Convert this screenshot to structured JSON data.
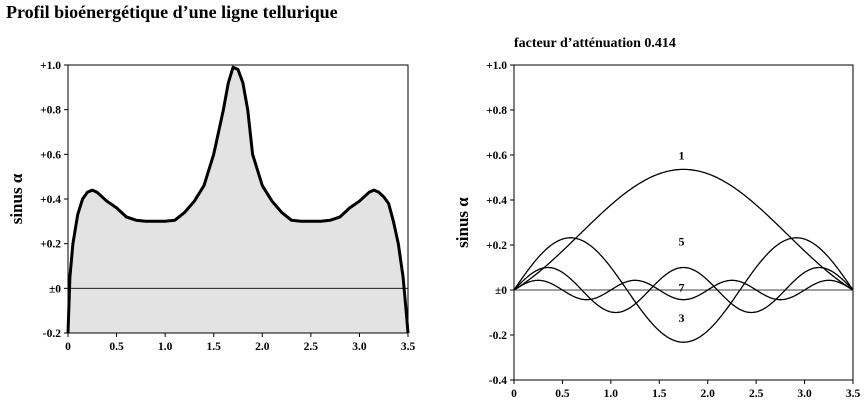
{
  "title": "Profil bioénergétique d’une ligne tellurique",
  "chart_data": [
    {
      "type": "area",
      "ylabel": "sinus α",
      "xlim": [
        0,
        3.5
      ],
      "ylim": [
        -0.2,
        1.0
      ],
      "x_ticks": [
        "0",
        "0.5",
        "1.0",
        "1.5",
        "2.0",
        "2.5",
        "3.0",
        "3.5"
      ],
      "y_ticks": [
        "-0.2",
        "±0",
        "+0.2",
        "+0.4",
        "+0.6",
        "+0.8",
        "+1.0"
      ],
      "series": [
        {
          "x": [
            0,
            0.02,
            0.05,
            0.1,
            0.15,
            0.2,
            0.25,
            0.3,
            0.4,
            0.5,
            0.6,
            0.7,
            0.8,
            0.9,
            1.0,
            1.1,
            1.2,
            1.3,
            1.4,
            1.5,
            1.6,
            1.65,
            1.7,
            1.75,
            1.8,
            1.85,
            1.9,
            2.0,
            2.1,
            2.2,
            2.3,
            2.4,
            2.5,
            2.6,
            2.7,
            2.8,
            2.9,
            3.0,
            3.1,
            3.15,
            3.2,
            3.25,
            3.3,
            3.35,
            3.4,
            3.45,
            3.48,
            3.5
          ],
          "y": [
            -0.2,
            0.05,
            0.2,
            0.33,
            0.4,
            0.43,
            0.44,
            0.43,
            0.39,
            0.36,
            0.32,
            0.305,
            0.3,
            0.3,
            0.3,
            0.305,
            0.34,
            0.39,
            0.46,
            0.6,
            0.8,
            0.92,
            0.99,
            0.98,
            0.92,
            0.8,
            0.6,
            0.46,
            0.39,
            0.34,
            0.305,
            0.3,
            0.3,
            0.3,
            0.305,
            0.32,
            0.36,
            0.39,
            0.43,
            0.44,
            0.43,
            0.41,
            0.38,
            0.3,
            0.2,
            0.05,
            -0.1,
            -0.2
          ]
        }
      ]
    },
    {
      "type": "line",
      "subtitle": "facteur d’atténuation 0.414",
      "ylabel": "sinus α",
      "xlim": [
        0,
        3.5
      ],
      "ylim": [
        -0.4,
        1.0
      ],
      "x_ticks": [
        "0",
        "0.5",
        "1.0",
        "1.5",
        "2.0",
        "2.5",
        "3.0",
        "3.5"
      ],
      "y_ticks": [
        "-0.4",
        "-0.2",
        "±0",
        "+0.2",
        "+0.4",
        "+0.6",
        "+0.8",
        "+1.0"
      ],
      "series": [
        {
          "name": "1",
          "harmonic": 1,
          "amplitude": 0.536
        },
        {
          "name": "3",
          "harmonic": 3,
          "amplitude": 0.232
        },
        {
          "name": "5",
          "harmonic": 5,
          "amplitude": 0.1
        },
        {
          "name": "7",
          "harmonic": 7,
          "amplitude": 0.043
        }
      ]
    }
  ]
}
